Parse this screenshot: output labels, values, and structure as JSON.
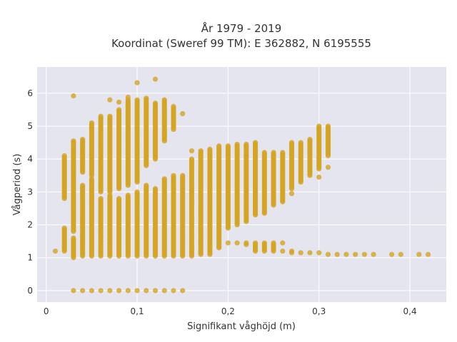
{
  "chart_data": {
    "type": "scatter",
    "title_lines": [
      "År 1979 - 2019",
      "Koordinat (Sweref 99 TM): E 362882, N 6195555"
    ],
    "xlabel": "Signifikant våghöjd (m)",
    "ylabel": "Vågperiod (s)",
    "xlim": [
      -0.01,
      0.44
    ],
    "ylim": [
      -0.35,
      6.8
    ],
    "x_ticks": [
      {
        "value": 0,
        "label": "0"
      },
      {
        "value": 0.1,
        "label": "0,1"
      },
      {
        "value": 0.2,
        "label": "0,2"
      },
      {
        "value": 0.3,
        "label": "0,3"
      },
      {
        "value": 0.4,
        "label": "0,4"
      }
    ],
    "y_ticks": [
      {
        "value": 0,
        "label": "0"
      },
      {
        "value": 1,
        "label": "1"
      },
      {
        "value": 2,
        "label": "2"
      },
      {
        "value": 3,
        "label": "3"
      },
      {
        "value": 4,
        "label": "4"
      },
      {
        "value": 5,
        "label": "5"
      },
      {
        "value": 6,
        "label": "6"
      }
    ],
    "grid": true,
    "colors": {
      "marker": "#d4a421",
      "plot_bg": "#e5e5f0",
      "grid": "#ffffff"
    },
    "series": [
      {
        "marker_step": 0.04,
        "columns": [
          {
            "x": 0.01,
            "ranges": [
              [
                1.2,
                1.2
              ]
            ]
          },
          {
            "x": 0.02,
            "ranges": [
              [
                1.2,
                1.9
              ],
              [
                2.8,
                4.1
              ]
            ]
          },
          {
            "x": 0.03,
            "ranges": [
              [
                0,
                0
              ],
              [
                1.0,
                1.6
              ],
              [
                1.8,
                4.55
              ]
            ],
            "points": [
              5.92
            ]
          },
          {
            "x": 0.04,
            "ranges": [
              [
                0,
                0
              ],
              [
                1.05,
                3.2
              ],
              [
                3.6,
                4.6
              ]
            ]
          },
          {
            "x": 0.05,
            "ranges": [
              [
                0,
                0
              ],
              [
                1.05,
                3.4
              ],
              [
                3.5,
                5.1
              ]
            ]
          },
          {
            "x": 0.06,
            "ranges": [
              [
                0,
                0
              ],
              [
                1.05,
                2.8
              ],
              [
                3.0,
                5.3
              ]
            ]
          },
          {
            "x": 0.07,
            "ranges": [
              [
                0,
                0
              ],
              [
                1.05,
                2.9
              ],
              [
                3.0,
                5.3
              ]
            ],
            "points": [
              5.8
            ]
          },
          {
            "x": 0.08,
            "ranges": [
              [
                0,
                0
              ],
              [
                1.05,
                2.8
              ],
              [
                3.1,
                5.5
              ]
            ],
            "points": [
              5.73
            ]
          },
          {
            "x": 0.09,
            "ranges": [
              [
                0,
                0
              ],
              [
                1.05,
                2.9
              ],
              [
                3.2,
                5.8
              ]
            ],
            "points": [
              5.88
            ]
          },
          {
            "x": 0.1,
            "ranges": [
              [
                0,
                0
              ],
              [
                1.05,
                3.0
              ],
              [
                3.3,
                5.8
              ]
            ],
            "points": [
              6.32
            ]
          },
          {
            "x": 0.11,
            "ranges": [
              [
                0,
                0
              ],
              [
                1.05,
                3.2
              ],
              [
                3.8,
                5.85
              ]
            ]
          },
          {
            "x": 0.12,
            "ranges": [
              [
                0,
                0
              ],
              [
                1.05,
                3.1
              ],
              [
                4.0,
                5.7
              ]
            ],
            "points": [
              6.43
            ]
          },
          {
            "x": 0.13,
            "ranges": [
              [
                0,
                0
              ],
              [
                1.05,
                3.4
              ],
              [
                4.55,
                5.8
              ]
            ]
          },
          {
            "x": 0.14,
            "ranges": [
              [
                0,
                0
              ],
              [
                1.05,
                3.5
              ],
              [
                4.9,
                5.6
              ]
            ]
          },
          {
            "x": 0.15,
            "ranges": [
              [
                0,
                0
              ],
              [
                1.05,
                3.5
              ]
            ],
            "points": [
              5.38
            ]
          },
          {
            "x": 0.16,
            "ranges": [
              [
                1.05,
                4.0
              ]
            ],
            "points": [
              4.25
            ]
          },
          {
            "x": 0.17,
            "ranges": [
              [
                1.1,
                4.25
              ]
            ]
          },
          {
            "x": 0.18,
            "ranges": [
              [
                1.1,
                4.3
              ]
            ]
          },
          {
            "x": 0.19,
            "ranges": [
              [
                1.3,
                4.4
              ]
            ]
          },
          {
            "x": 0.2,
            "ranges": [
              [
                1.45,
                1.45
              ],
              [
                1.9,
                4.4
              ]
            ]
          },
          {
            "x": 0.21,
            "ranges": [
              [
                1.45,
                1.45
              ],
              [
                2.0,
                4.45
              ]
            ]
          },
          {
            "x": 0.22,
            "ranges": [
              [
                1.4,
                1.45
              ],
              [
                2.1,
                4.45
              ]
            ]
          },
          {
            "x": 0.23,
            "ranges": [
              [
                1.2,
                1.45
              ],
              [
                2.3,
                4.5
              ]
            ]
          },
          {
            "x": 0.24,
            "ranges": [
              [
                1.2,
                1.45
              ],
              [
                2.35,
                4.2
              ]
            ]
          },
          {
            "x": 0.25,
            "ranges": [
              [
                1.2,
                1.45
              ],
              [
                2.6,
                4.2
              ]
            ]
          },
          {
            "x": 0.26,
            "ranges": [
              [
                1.2,
                1.2
              ],
              [
                2.7,
                4.2
              ]
            ],
            "points": [
              1.45
            ]
          },
          {
            "x": 0.27,
            "ranges": [
              [
                1.15,
                1.2
              ],
              [
                3.1,
                4.5
              ]
            ],
            "points": [
              2.95
            ]
          },
          {
            "x": 0.28,
            "ranges": [
              [
                1.15,
                1.15
              ],
              [
                3.3,
                4.5
              ]
            ]
          },
          {
            "x": 0.29,
            "ranges": [
              [
                1.15,
                1.15
              ],
              [
                3.5,
                4.6
              ]
            ]
          },
          {
            "x": 0.3,
            "ranges": [
              [
                1.15,
                1.15
              ],
              [
                3.7,
                5.0
              ]
            ],
            "points": [
              3.45
            ]
          },
          {
            "x": 0.31,
            "ranges": [
              [
                1.1,
                1.1
              ],
              [
                4.1,
                5.0
              ]
            ],
            "points": [
              3.75
            ]
          },
          {
            "x": 0.32,
            "ranges": [
              [
                1.1,
                1.1
              ]
            ]
          },
          {
            "x": 0.33,
            "ranges": [
              [
                1.1,
                1.1
              ]
            ]
          },
          {
            "x": 0.34,
            "ranges": [
              [
                1.1,
                1.1
              ]
            ]
          },
          {
            "x": 0.35,
            "ranges": [
              [
                1.1,
                1.1
              ]
            ]
          },
          {
            "x": 0.36,
            "ranges": [
              [
                1.1,
                1.1
              ]
            ]
          },
          {
            "x": 0.38,
            "ranges": [
              [
                1.1,
                1.1
              ]
            ]
          },
          {
            "x": 0.39,
            "ranges": [
              [
                1.1,
                1.1
              ]
            ]
          },
          {
            "x": 0.41,
            "ranges": [
              [
                1.1,
                1.1
              ]
            ]
          },
          {
            "x": 0.42,
            "ranges": [
              [
                1.1,
                1.1
              ]
            ]
          }
        ]
      }
    ]
  }
}
